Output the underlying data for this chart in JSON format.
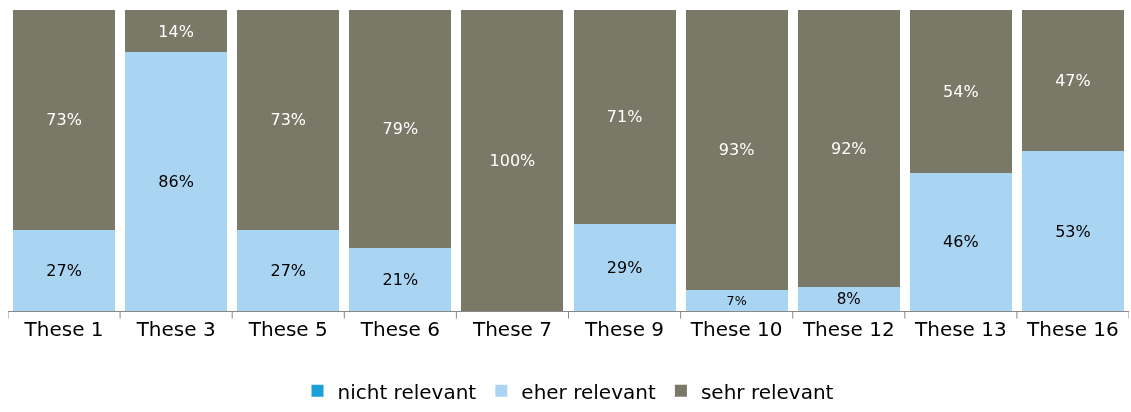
{
  "chart_data": {
    "type": "bar",
    "stacked": true,
    "legend": "bottom",
    "tick_labels": "x",
    "categories": [
      "These 1",
      "These 3",
      "These 5",
      "These 6",
      "These 7",
      "These 9",
      "These 10",
      "These 12",
      "These 13",
      "These 16"
    ],
    "series": [
      {
        "name": "nicht relevant",
        "color": "#1a9fd9",
        "values": [
          0,
          0,
          0,
          0,
          0,
          0,
          0,
          0,
          0,
          0
        ],
        "value_labels": [
          null,
          null,
          null,
          null,
          null,
          null,
          null,
          null,
          null,
          null
        ]
      },
      {
        "name": "eher relevant",
        "color": "#a9d4f2",
        "values": [
          27,
          86,
          27,
          21,
          0,
          29,
          7,
          8,
          46,
          53
        ],
        "value_labels": [
          "27%",
          "86%",
          "27%",
          "21%",
          null,
          "29%",
          "7%",
          "8%",
          "46%",
          "53%"
        ]
      },
      {
        "name": "sehr relevant",
        "color": "#7a7866",
        "values": [
          73,
          14,
          73,
          79,
          100,
          71,
          93,
          92,
          54,
          47
        ],
        "value_labels": [
          "73%",
          "14%",
          "73%",
          "79%",
          "100%",
          "71%",
          "93%",
          "92%",
          "54%",
          "47%"
        ]
      }
    ]
  }
}
